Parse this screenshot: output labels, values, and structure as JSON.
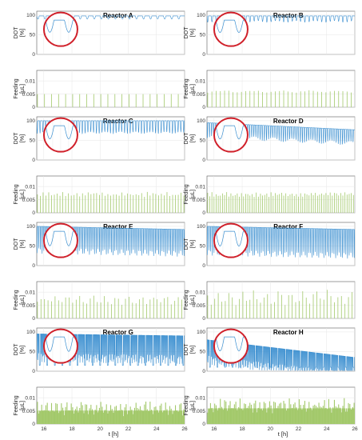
{
  "figure": {
    "xlabel": "t [h]"
  },
  "chart_data": [
    {
      "type": "line",
      "title": "Reactor A",
      "ylabel_line1": "DOT",
      "ylabel_line2": "[%]",
      "xlim": [
        15.5,
        26
      ],
      "ylim": [
        0,
        110
      ],
      "yticks": [
        "0",
        "50",
        "100"
      ],
      "xticks": [],
      "period": 0.5,
      "base": 98,
      "dip": 8,
      "spread": 0,
      "gap": 0,
      "trend": 0,
      "zoom": true
    },
    {
      "type": "bar",
      "title": "",
      "ylabel_line1": "Feeding",
      "ylabel_line2": "[μL]",
      "xlim": [
        15.5,
        26
      ],
      "ylim": [
        0,
        0.014
      ],
      "yticks": [
        "0",
        "0.005",
        "0.01"
      ],
      "xticks": [],
      "period": 0.5,
      "base": 0.005,
      "var": 0
    },
    {
      "type": "line",
      "title": "Reactor B",
      "ylabel_line1": "DOT",
      "ylabel_line2": "[%]",
      "xlim": [
        15.5,
        26
      ],
      "ylim": [
        0,
        110
      ],
      "yticks": [
        "0",
        "50",
        "100"
      ],
      "xticks": [],
      "period": 0.3,
      "base": 98,
      "dip": 12,
      "spread": 4,
      "gap": 0,
      "trend": 0,
      "zoom": true
    },
    {
      "type": "bar",
      "title": "",
      "ylabel_line1": "Feeding",
      "ylabel_line2": "[μL]",
      "xlim": [
        15.5,
        26
      ],
      "ylim": [
        0,
        0.014
      ],
      "yticks": [
        "0",
        "0.005",
        "0.01"
      ],
      "xticks": [],
      "period": 0.3,
      "base": 0.006,
      "var": 0.0005
    },
    {
      "type": "line",
      "title": "Reactor C",
      "ylabel_line1": "DOT",
      "ylabel_line2": "[%]",
      "xlim": [
        15.5,
        26
      ],
      "ylim": [
        0,
        110
      ],
      "yticks": [
        "0",
        "50",
        "100"
      ],
      "xticks": [],
      "period": 0.2,
      "base": 100,
      "dip": 28,
      "spread": 5,
      "gap": 0,
      "trend": 0,
      "zoom": true
    },
    {
      "type": "bar",
      "title": "",
      "ylabel_line1": "Feeding",
      "ylabel_line2": "[μL]",
      "xlim": [
        15.5,
        26
      ],
      "ylim": [
        0,
        0.014
      ],
      "yticks": [
        "0",
        "0.005",
        "0.01"
      ],
      "xticks": [],
      "period": 0.2,
      "base": 0.007,
      "var": 0.001
    },
    {
      "type": "line",
      "title": "Reactor D",
      "ylabel_line1": "DOT",
      "ylabel_line2": "[%]",
      "xlim": [
        15.5,
        26
      ],
      "ylim": [
        0,
        110
      ],
      "yticks": [
        "0",
        "50",
        "100"
      ],
      "xticks": [],
      "period": 0.15,
      "base": 95,
      "dip": 30,
      "spread": 10,
      "gap": 0,
      "trend": 18,
      "zoom": true
    },
    {
      "type": "bar",
      "title": "",
      "ylabel_line1": "Feeding",
      "ylabel_line2": "[μL]",
      "xlim": [
        15.5,
        26
      ],
      "ylim": [
        0,
        0.014
      ],
      "yticks": [
        "0",
        "0.005",
        "0.01"
      ],
      "xticks": [],
      "period": 0.15,
      "base": 0.007,
      "var": 0.001
    },
    {
      "type": "line",
      "title": "Reactor E",
      "ylabel_line1": "DOT",
      "ylabel_line2": "[%]",
      "xlim": [
        15.5,
        26
      ],
      "ylim": [
        0,
        110
      ],
      "yticks": [
        "0",
        "50",
        "100"
      ],
      "xticks": [],
      "period": 0.12,
      "base": 100,
      "dip": 55,
      "spread": 15,
      "gap": 0,
      "trend": 8,
      "zoom": true
    },
    {
      "type": "bar",
      "title": "",
      "ylabel_line1": "Feeding",
      "ylabel_line2": "[μL]",
      "xlim": [
        15.5,
        26
      ],
      "ylim": [
        0,
        0.014
      ],
      "yticks": [
        "0",
        "0.005",
        "0.01"
      ],
      "xticks": [],
      "period": 0.25,
      "base": 0.007,
      "var": 0.002
    },
    {
      "type": "line",
      "title": "Reactor F",
      "ylabel_line1": "DOT",
      "ylabel_line2": "[%]",
      "xlim": [
        15.5,
        26
      ],
      "ylim": [
        0,
        110
      ],
      "yticks": [
        "0",
        "50",
        "100"
      ],
      "xticks": [],
      "period": 0.12,
      "base": 100,
      "dip": 60,
      "spread": 15,
      "gap": 0,
      "trend": 8,
      "zoom": true
    },
    {
      "type": "bar",
      "title": "",
      "ylabel_line1": "Feeding",
      "ylabel_line2": "[μL]",
      "xlim": [
        15.5,
        26
      ],
      "ylim": [
        0,
        0.014
      ],
      "yticks": [
        "0",
        "0.005",
        "0.01"
      ],
      "xticks": [],
      "period": 0.25,
      "base": 0.008,
      "var": 0.003
    },
    {
      "type": "line",
      "title": "Reactor G",
      "ylabel_line1": "DOT",
      "ylabel_line2": "[%]",
      "xlim": [
        15.5,
        26
      ],
      "ylim": [
        0,
        110
      ],
      "yticks": [
        "0",
        "50",
        "100"
      ],
      "xticks": [],
      "period": 0.06,
      "base": 95,
      "dip": 55,
      "spread": 25,
      "gap": 0.08,
      "trend": 5,
      "zoom": true
    },
    {
      "type": "bar",
      "title": "",
      "ylabel_line1": "Feeding",
      "ylabel_line2": "[μL]",
      "xlim": [
        15.5,
        26
      ],
      "ylim": [
        0,
        0.014
      ],
      "yticks": [
        "0",
        "0.005",
        "0.01"
      ],
      "xticks": [
        "16",
        "18",
        "20",
        "22",
        "24",
        "26"
      ],
      "period": 0.1,
      "base": 0.006,
      "var": 0.003,
      "fill": true
    },
    {
      "type": "line",
      "title": "Reactor H",
      "ylabel_line1": "DOT",
      "ylabel_line2": "[%]",
      "xlim": [
        15.5,
        26
      ],
      "ylim": [
        0,
        110
      ],
      "yticks": [
        "0",
        "50",
        "100"
      ],
      "xticks": [],
      "period": 0.06,
      "base": 80,
      "dip": 45,
      "spread": 25,
      "gap": 0.06,
      "trend": 45,
      "zoom": true
    },
    {
      "type": "bar",
      "title": "",
      "ylabel_line1": "Feeding",
      "ylabel_line2": "[μL]",
      "xlim": [
        15.5,
        26
      ],
      "ylim": [
        0,
        0.014
      ],
      "yticks": [
        "0",
        "0.005",
        "0.01"
      ],
      "xticks": [
        "16",
        "18",
        "20",
        "22",
        "24",
        "26"
      ],
      "period": 0.1,
      "base": 0.007,
      "var": 0.003,
      "fill": true
    }
  ],
  "colors": {
    "line": "#3b8fd0",
    "bar": "#a3c96b",
    "zoom_circle": "#d0202a",
    "grid": "#e6e6e6",
    "axis": "#5a5a5a"
  }
}
